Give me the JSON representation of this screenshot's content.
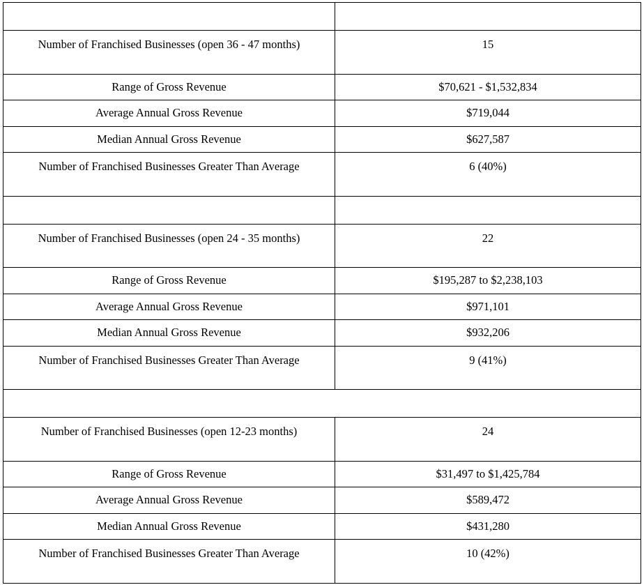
{
  "sections": [
    {
      "rows": [
        {
          "label": "Number of Franchised Businesses (open 36 - 47 months)",
          "value": "15"
        },
        {
          "label": "Range of Gross Revenue",
          "value": "$70,621 - $1,532,834"
        },
        {
          "label": "Average Annual Gross Revenue",
          "value": "$719,044"
        },
        {
          "label": "Median Annual Gross Revenue",
          "value": "$627,587"
        },
        {
          "label": "Number of Franchised Businesses Greater Than Average",
          "value": "6 (40%)"
        }
      ]
    },
    {
      "rows": [
        {
          "label": "Number of Franchised Businesses (open 24 - 35 months)",
          "value": "22"
        },
        {
          "label": "Range of Gross Revenue",
          "value": "$195,287 to $2,238,103"
        },
        {
          "label": "Average Annual Gross Revenue",
          "value": "$971,101"
        },
        {
          "label": "Median Annual Gross Revenue",
          "value": "$932,206"
        },
        {
          "label": "Number of Franchised Businesses Greater Than Average",
          "value": "9 (41%)"
        }
      ]
    },
    {
      "rows": [
        {
          "label": "Number of Franchised Businesses (open 12-23 months)",
          "value": "24"
        },
        {
          "label": "Range of Gross Revenue",
          "value": "$31,497 to $1,425,784"
        },
        {
          "label": "Average Annual Gross Revenue",
          "value": "$589,472"
        },
        {
          "label": "Median Annual Gross Revenue",
          "value": "$431,280"
        },
        {
          "label": "Number of Franchised Businesses Greater Than Average",
          "value": "10 (42%)"
        }
      ]
    }
  ]
}
